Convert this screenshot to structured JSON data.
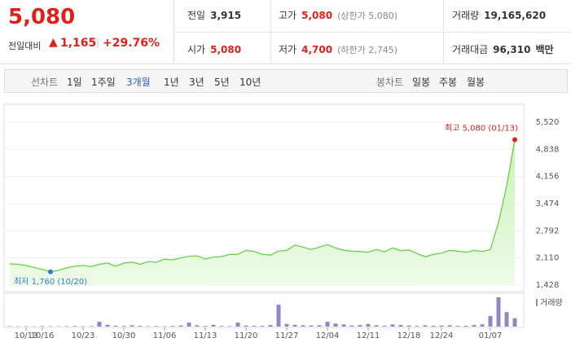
{
  "quote": {
    "price": "5,080",
    "change_label": "전일대비",
    "change": "1,165",
    "change_pct": "+29.76%"
  },
  "stats": [
    {
      "label": "전일",
      "value": "3,915"
    },
    {
      "label": "고가",
      "value": "5,080",
      "note": "(상한가 5,080)"
    },
    {
      "label": "거래량",
      "value": "19,165,620"
    },
    {
      "label": "시가",
      "value": "5,080"
    },
    {
      "label": "저가",
      "value": "4,700",
      "note": "(하한가 2,745)"
    },
    {
      "label": "거래대금",
      "value": "96,310",
      "unit": "백만"
    }
  ],
  "tabs": {
    "line_label": "선차트",
    "line": [
      "1일",
      "1주일",
      "3개월",
      "1년",
      "3년",
      "5년",
      "10년"
    ],
    "selected_index": 2,
    "candle_label": "봉차트",
    "candle": [
      "일봉",
      "주봉",
      "월봉"
    ]
  },
  "chart_data": {
    "type": "line",
    "color": "#5ccf3a",
    "categories": [
      null,
      null,
      "10/13",
      null,
      "10/16",
      null,
      null,
      null,
      null,
      "10/23",
      null,
      null,
      null,
      null,
      "10/30",
      null,
      null,
      null,
      null,
      "11/06",
      null,
      null,
      null,
      null,
      "11/13",
      null,
      null,
      null,
      null,
      "11/20",
      null,
      null,
      null,
      null,
      "11/27",
      null,
      null,
      null,
      null,
      "12/04",
      null,
      null,
      null,
      null,
      "12/11",
      null,
      null,
      null,
      null,
      "12/18",
      null,
      null,
      null,
      "12/24",
      null,
      null,
      null,
      null,
      null,
      "01/07",
      null,
      null,
      null
    ],
    "values": [
      1960,
      1950,
      1920,
      1870,
      1820,
      1760,
      1800,
      1860,
      1900,
      1920,
      1890,
      1950,
      1980,
      1900,
      1980,
      2000,
      1950,
      2020,
      2000,
      2080,
      2060,
      2110,
      2150,
      2160,
      2080,
      2130,
      2140,
      2200,
      2200,
      2300,
      2270,
      2200,
      2180,
      2280,
      2300,
      2430,
      2380,
      2320,
      2380,
      2440,
      2360,
      2300,
      2280,
      2270,
      2250,
      2320,
      2260,
      2360,
      2290,
      2310,
      2220,
      2140,
      2200,
      2230,
      2300,
      2280,
      2250,
      2300,
      2270,
      2320,
      3000,
      3915,
      5080
    ],
    "ylim": [
      1428,
      5520
    ],
    "yticks": [
      {
        "value": 1428,
        "label": "1,428"
      },
      {
        "value": 2110,
        "label": "2,110"
      },
      {
        "value": 2792,
        "label": "2,792"
      },
      {
        "value": 3474,
        "label": "3,474"
      },
      {
        "value": 4156,
        "label": "4,156"
      },
      {
        "value": 4838,
        "label": "4,838"
      },
      {
        "value": 5520,
        "label": "5,520"
      }
    ],
    "grid": true,
    "max_label": "최고 5,080 (01/13)",
    "min_label": "최저 1,760 (10/20)",
    "volume": {
      "name": "거래량",
      "color": "#8f86c8",
      "values": [
        900000,
        700000,
        800000,
        600000,
        1200000,
        900000,
        700000,
        1000000,
        1300000,
        900000,
        1100000,
        11000000,
        4000000,
        2000000,
        1500000,
        3000000,
        1800000,
        1000000,
        1200000,
        900000,
        1500000,
        2500000,
        9000000,
        3000000,
        1600000,
        4000000,
        1500000,
        1200000,
        9000000,
        2500000,
        2000000,
        1800000,
        3500000,
        50000000,
        6000000,
        4000000,
        3000000,
        2500000,
        3000000,
        11000000,
        7000000,
        5000000,
        2500000,
        3500000,
        6000000,
        3000000,
        2000000,
        5000000,
        3500000,
        2500000,
        1500000,
        3000000,
        2000000,
        2500000,
        3000000,
        1800000,
        2000000,
        3500000,
        5000000,
        24000000,
        67000000,
        33000000,
        19165620
      ]
    }
  }
}
